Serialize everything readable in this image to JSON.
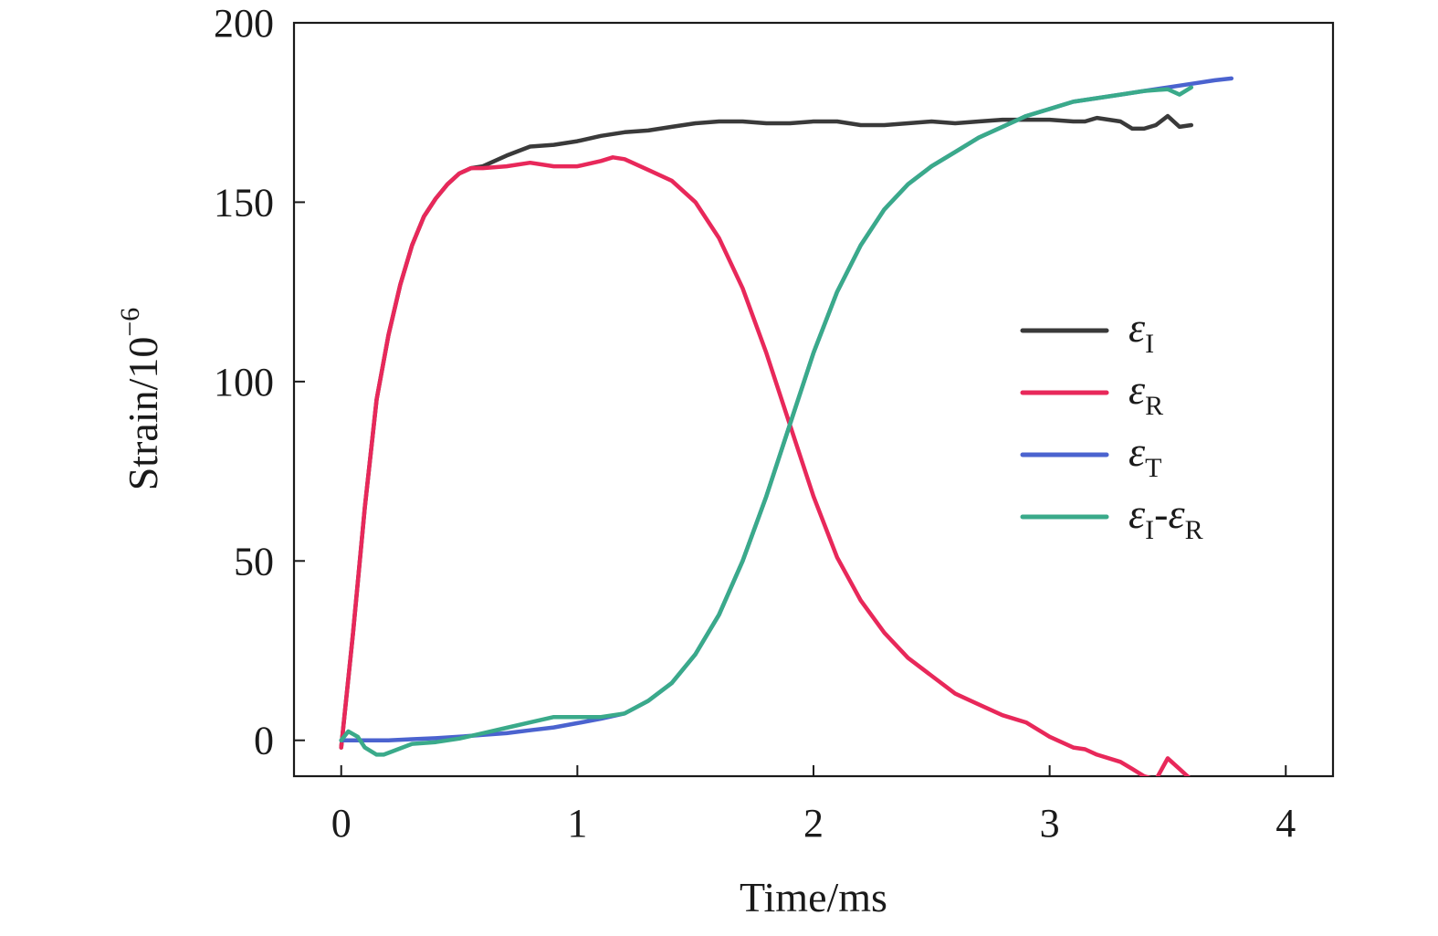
{
  "chart_data": {
    "type": "line",
    "title": "",
    "xlabel": "Time/ms",
    "ylabel": "Strain/10",
    "ylabel_exponent": "−6",
    "xlim": [
      -0.2,
      4.2
    ],
    "ylim": [
      -10,
      200
    ],
    "x_ticks": [
      0,
      1,
      2,
      3,
      4
    ],
    "y_ticks": [
      0,
      50,
      100,
      150,
      200
    ],
    "grid": false,
    "legend_position": "right",
    "series": [
      {
        "name": "ε_I",
        "legend_symbol": "ε",
        "legend_subscript": "I",
        "color": "#3a3a3a",
        "x": [
          0.0,
          0.05,
          0.1,
          0.15,
          0.2,
          0.25,
          0.3,
          0.35,
          0.4,
          0.45,
          0.5,
          0.55,
          0.6,
          0.7,
          0.8,
          0.9,
          1.0,
          1.1,
          1.2,
          1.3,
          1.4,
          1.5,
          1.6,
          1.7,
          1.8,
          1.9,
          2.0,
          2.1,
          2.2,
          2.3,
          2.4,
          2.5,
          2.6,
          2.7,
          2.8,
          2.9,
          3.0,
          3.1,
          3.15,
          3.2,
          3.3,
          3.35,
          3.4,
          3.45,
          3.5,
          3.55,
          3.6
        ],
        "y": [
          -2,
          30,
          65,
          95,
          113,
          127,
          138,
          146,
          151,
          155,
          158,
          159.5,
          160,
          163,
          165.5,
          166,
          167,
          168.5,
          169.5,
          170,
          171,
          172,
          172.5,
          172.5,
          172,
          172,
          172.5,
          172.5,
          171.5,
          171.5,
          172,
          172.5,
          172,
          172.5,
          173,
          173,
          173,
          172.5,
          172.5,
          173.5,
          172.5,
          170.5,
          170.5,
          171.5,
          174,
          171,
          171.5
        ]
      },
      {
        "name": "ε_R",
        "legend_symbol": "ε",
        "legend_subscript": "R",
        "color": "#e8285a",
        "x": [
          0.0,
          0.05,
          0.1,
          0.15,
          0.2,
          0.25,
          0.3,
          0.35,
          0.4,
          0.45,
          0.5,
          0.55,
          0.6,
          0.7,
          0.8,
          0.9,
          1.0,
          1.1,
          1.15,
          1.2,
          1.3,
          1.4,
          1.5,
          1.6,
          1.7,
          1.8,
          1.9,
          2.0,
          2.1,
          2.2,
          2.3,
          2.4,
          2.5,
          2.6,
          2.7,
          2.8,
          2.9,
          3.0,
          3.1,
          3.15,
          3.2,
          3.3,
          3.35,
          3.4,
          3.45,
          3.5,
          3.55,
          3.6
        ],
        "y": [
          -2,
          30,
          65,
          95,
          113,
          127,
          138,
          146,
          151,
          155,
          158,
          159.5,
          159.5,
          160,
          161,
          160,
          160,
          161.5,
          162.5,
          162,
          159,
          156,
          150,
          140,
          126,
          108,
          88,
          68,
          51,
          39,
          30,
          23,
          18,
          13,
          10,
          7,
          5,
          1,
          -2,
          -2.5,
          -4,
          -6,
          -8,
          -10,
          -11,
          -5,
          -8,
          -11
        ]
      },
      {
        "name": "ε_T",
        "legend_symbol": "ε",
        "legend_subscript": "T",
        "color": "#4b63cf",
        "x": [
          0.0,
          0.1,
          0.2,
          0.3,
          0.4,
          0.5,
          0.6,
          0.7,
          0.8,
          0.9,
          1.0,
          1.1,
          1.2,
          1.3,
          1.4,
          1.5,
          1.6,
          1.7,
          1.8,
          1.9,
          2.0,
          2.1,
          2.2,
          2.3,
          2.4,
          2.5,
          2.6,
          2.7,
          2.8,
          2.9,
          3.0,
          3.1,
          3.2,
          3.3,
          3.4,
          3.5,
          3.6,
          3.7,
          3.77
        ],
        "y": [
          0,
          0,
          0,
          0.3,
          0.6,
          1,
          1.5,
          2,
          2.8,
          3.6,
          4.8,
          6,
          7.5,
          11,
          16,
          24,
          35,
          50,
          68,
          88,
          108,
          125,
          138,
          148,
          155,
          160,
          164,
          168,
          171,
          174,
          176,
          178,
          179,
          180,
          181,
          182,
          183,
          184,
          184.5
        ]
      },
      {
        "name": "ε_I-ε_R",
        "legend_symbol": "ε",
        "legend_subscript": "I",
        "legend_symbol_2": "ε",
        "legend_subscript_2": "R",
        "color": "#3aaa8a",
        "x": [
          0.0,
          0.03,
          0.07,
          0.1,
          0.15,
          0.18,
          0.22,
          0.3,
          0.4,
          0.5,
          0.6,
          0.7,
          0.8,
          0.9,
          1.0,
          1.1,
          1.2,
          1.3,
          1.4,
          1.5,
          1.6,
          1.7,
          1.8,
          1.9,
          2.0,
          2.1,
          2.2,
          2.3,
          2.4,
          2.5,
          2.6,
          2.7,
          2.8,
          2.9,
          3.0,
          3.1,
          3.2,
          3.3,
          3.4,
          3.5,
          3.55,
          3.6
        ],
        "y": [
          0,
          2.5,
          1,
          -2,
          -4,
          -4,
          -3,
          -1,
          -0.5,
          0.5,
          2,
          3.5,
          5,
          6.5,
          6.5,
          6.5,
          7.5,
          11,
          16,
          24,
          35,
          50,
          68,
          88,
          108,
          125,
          138,
          148,
          155,
          160,
          164,
          168,
          171,
          174,
          176,
          178,
          179,
          180,
          181,
          181.5,
          180,
          182
        ]
      }
    ]
  }
}
